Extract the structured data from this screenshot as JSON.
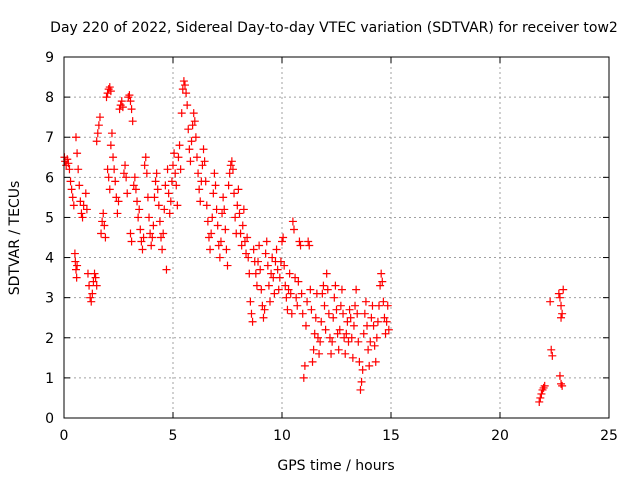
{
  "chart_data": {
    "type": "scatter",
    "title": "Day 220 of 2022, Sidereal Day-to-day VTEC variation (SDTVAR) for receiver tow2",
    "xlabel": "GPS time / hours",
    "ylabel": "SDTVAR / TECUs",
    "xlim": [
      0,
      25
    ],
    "ylim": [
      0,
      9
    ],
    "xticks": [
      "0",
      "5",
      "10",
      "15",
      "20",
      "25"
    ],
    "yticks": [
      "0",
      "1",
      "2",
      "3",
      "4",
      "5",
      "6",
      "7",
      "8",
      "9"
    ],
    "grid": true,
    "marker": "plus",
    "color": "#ff0000",
    "series": [
      {
        "name": "SDTVAR",
        "points": [
          [
            0.02,
            6.5
          ],
          [
            0.05,
            6.4
          ],
          [
            0.1,
            6.3
          ],
          [
            0.15,
            6.45
          ],
          [
            0.2,
            6.35
          ],
          [
            0.25,
            6.2
          ],
          [
            0.3,
            5.9
          ],
          [
            0.35,
            5.7
          ],
          [
            0.4,
            5.5
          ],
          [
            0.45,
            5.3
          ],
          [
            0.5,
            4.1
          ],
          [
            0.52,
            3.9
          ],
          [
            0.55,
            3.7
          ],
          [
            0.58,
            3.5
          ],
          [
            0.6,
            3.8
          ],
          [
            0.55,
            7.0
          ],
          [
            0.6,
            6.6
          ],
          [
            0.65,
            6.2
          ],
          [
            0.7,
            5.8
          ],
          [
            0.75,
            5.4
          ],
          [
            0.8,
            5.1
          ],
          [
            0.85,
            5.0
          ],
          [
            0.9,
            5.3
          ],
          [
            1.0,
            5.6
          ],
          [
            1.05,
            5.2
          ],
          [
            1.1,
            3.6
          ],
          [
            1.15,
            3.3
          ],
          [
            1.2,
            3.0
          ],
          [
            1.25,
            2.9
          ],
          [
            1.3,
            3.1
          ],
          [
            1.35,
            3.4
          ],
          [
            1.4,
            3.6
          ],
          [
            1.45,
            3.5
          ],
          [
            1.5,
            3.3
          ],
          [
            1.5,
            6.9
          ],
          [
            1.55,
            7.1
          ],
          [
            1.6,
            7.3
          ],
          [
            1.65,
            7.5
          ],
          [
            1.7,
            4.6
          ],
          [
            1.75,
            4.9
          ],
          [
            1.8,
            5.1
          ],
          [
            1.85,
            4.8
          ],
          [
            1.9,
            4.5
          ],
          [
            1.95,
            8.0
          ],
          [
            2.0,
            8.1
          ],
          [
            2.05,
            8.2
          ],
          [
            2.1,
            8.25
          ],
          [
            2.15,
            8.15
          ],
          [
            2.0,
            6.2
          ],
          [
            2.05,
            6.0
          ],
          [
            2.1,
            5.7
          ],
          [
            2.15,
            6.8
          ],
          [
            2.2,
            7.1
          ],
          [
            2.25,
            6.5
          ],
          [
            2.3,
            6.2
          ],
          [
            2.35,
            5.9
          ],
          [
            2.4,
            5.5
          ],
          [
            2.45,
            5.1
          ],
          [
            2.5,
            5.4
          ],
          [
            2.55,
            7.7
          ],
          [
            2.6,
            7.8
          ],
          [
            2.65,
            7.9
          ],
          [
            2.7,
            7.75
          ],
          [
            2.75,
            6.1
          ],
          [
            2.8,
            6.3
          ],
          [
            2.85,
            6.0
          ],
          [
            2.9,
            5.6
          ],
          [
            2.95,
            8.0
          ],
          [
            3.0,
            8.05
          ],
          [
            3.05,
            7.9
          ],
          [
            3.1,
            7.7
          ],
          [
            3.15,
            7.4
          ],
          [
            3.05,
            4.6
          ],
          [
            3.1,
            4.4
          ],
          [
            3.2,
            5.8
          ],
          [
            3.25,
            6.0
          ],
          [
            3.3,
            5.7
          ],
          [
            3.35,
            5.4
          ],
          [
            3.4,
            5.0
          ],
          [
            3.45,
            5.2
          ],
          [
            3.5,
            4.7
          ],
          [
            3.55,
            4.4
          ],
          [
            3.6,
            4.2
          ],
          [
            3.65,
            4.5
          ],
          [
            3.7,
            6.3
          ],
          [
            3.75,
            6.5
          ],
          [
            3.8,
            6.1
          ],
          [
            3.85,
            5.5
          ],
          [
            3.9,
            5.0
          ],
          [
            3.95,
            4.6
          ],
          [
            4.0,
            4.3
          ],
          [
            4.05,
            4.5
          ],
          [
            4.1,
            4.8
          ],
          [
            4.15,
            5.5
          ],
          [
            4.2,
            5.9
          ],
          [
            4.25,
            6.1
          ],
          [
            4.3,
            5.7
          ],
          [
            4.35,
            5.3
          ],
          [
            4.4,
            4.9
          ],
          [
            4.45,
            4.5
          ],
          [
            4.5,
            4.2
          ],
          [
            4.55,
            4.6
          ],
          [
            4.6,
            5.2
          ],
          [
            4.65,
            5.8
          ],
          [
            4.7,
            3.7
          ],
          [
            4.75,
            6.2
          ],
          [
            4.8,
            5.6
          ],
          [
            4.85,
            5.1
          ],
          [
            4.9,
            5.4
          ],
          [
            4.95,
            5.9
          ],
          [
            5.0,
            6.3
          ],
          [
            5.05,
            6.6
          ],
          [
            5.1,
            6.1
          ],
          [
            5.15,
            5.8
          ],
          [
            5.2,
            5.3
          ],
          [
            5.25,
            6.5
          ],
          [
            5.3,
            6.8
          ],
          [
            5.35,
            6.2
          ],
          [
            5.4,
            7.6
          ],
          [
            5.45,
            8.2
          ],
          [
            5.5,
            8.4
          ],
          [
            5.55,
            8.3
          ],
          [
            5.6,
            8.1
          ],
          [
            5.65,
            7.8
          ],
          [
            5.7,
            7.2
          ],
          [
            5.75,
            6.7
          ],
          [
            5.8,
            6.4
          ],
          [
            5.85,
            6.9
          ],
          [
            5.9,
            7.3
          ],
          [
            5.95,
            7.6
          ],
          [
            6.0,
            7.4
          ],
          [
            6.05,
            7.0
          ],
          [
            6.1,
            6.5
          ],
          [
            6.15,
            6.1
          ],
          [
            6.2,
            5.7
          ],
          [
            6.25,
            5.4
          ],
          [
            6.3,
            5.9
          ],
          [
            6.35,
            6.3
          ],
          [
            6.4,
            6.7
          ],
          [
            6.45,
            6.4
          ],
          [
            6.5,
            5.9
          ],
          [
            6.55,
            5.3
          ],
          [
            6.6,
            4.9
          ],
          [
            6.65,
            4.5
          ],
          [
            6.7,
            4.2
          ],
          [
            6.75,
            4.6
          ],
          [
            6.8,
            5.0
          ],
          [
            6.85,
            5.6
          ],
          [
            6.9,
            6.1
          ],
          [
            6.95,
            5.8
          ],
          [
            7.0,
            5.2
          ],
          [
            7.05,
            4.8
          ],
          [
            7.1,
            4.3
          ],
          [
            7.15,
            4.0
          ],
          [
            7.2,
            4.4
          ],
          [
            7.25,
            5.1
          ],
          [
            7.3,
            5.5
          ],
          [
            7.35,
            5.2
          ],
          [
            7.4,
            4.7
          ],
          [
            7.45,
            4.2
          ],
          [
            7.5,
            3.8
          ],
          [
            7.55,
            5.8
          ],
          [
            7.6,
            6.1
          ],
          [
            7.65,
            6.3
          ],
          [
            7.7,
            6.4
          ],
          [
            7.75,
            6.2
          ],
          [
            7.8,
            5.6
          ],
          [
            7.85,
            5.0
          ],
          [
            7.9,
            4.6
          ],
          [
            7.95,
            5.3
          ],
          [
            8.0,
            5.7
          ],
          [
            8.05,
            5.1
          ],
          [
            8.1,
            4.6
          ],
          [
            8.15,
            4.3
          ],
          [
            8.2,
            4.8
          ],
          [
            8.25,
            5.2
          ],
          [
            8.3,
            4.4
          ],
          [
            8.35,
            4.1
          ],
          [
            8.4,
            4.5
          ],
          [
            8.45,
            4.0
          ],
          [
            8.5,
            3.6
          ],
          [
            8.55,
            2.9
          ],
          [
            8.6,
            2.6
          ],
          [
            8.65,
            2.4
          ],
          [
            8.7,
            4.2
          ],
          [
            8.75,
            3.9
          ],
          [
            8.8,
            3.6
          ],
          [
            8.85,
            3.3
          ],
          [
            8.9,
            3.9
          ],
          [
            8.95,
            4.3
          ],
          [
            9.0,
            3.7
          ],
          [
            9.05,
            3.2
          ],
          [
            9.1,
            2.8
          ],
          [
            9.15,
            2.5
          ],
          [
            9.2,
            2.7
          ],
          [
            9.25,
            4.1
          ],
          [
            9.3,
            4.4
          ],
          [
            9.35,
            3.8
          ],
          [
            9.4,
            3.3
          ],
          [
            9.45,
            2.9
          ],
          [
            9.5,
            3.6
          ],
          [
            9.55,
            4.0
          ],
          [
            9.6,
            3.5
          ],
          [
            9.65,
            3.1
          ],
          [
            9.7,
            3.9
          ],
          [
            9.75,
            4.2
          ],
          [
            9.8,
            3.7
          ],
          [
            9.85,
            3.2
          ],
          [
            9.9,
            3.5
          ],
          [
            9.95,
            3.9
          ],
          [
            10.0,
            4.4
          ],
          [
            10.05,
            4.5
          ],
          [
            10.1,
            3.8
          ],
          [
            10.15,
            3.3
          ],
          [
            10.2,
            3.0
          ],
          [
            10.25,
            2.7
          ],
          [
            10.3,
            3.2
          ],
          [
            10.35,
            3.6
          ],
          [
            10.4,
            3.1
          ],
          [
            10.45,
            2.6
          ],
          [
            10.5,
            4.9
          ],
          [
            10.55,
            4.7
          ],
          [
            10.6,
            3.5
          ],
          [
            10.65,
            3.0
          ],
          [
            10.7,
            2.8
          ],
          [
            10.75,
            3.4
          ],
          [
            10.8,
            4.4
          ],
          [
            10.85,
            4.3
          ],
          [
            10.9,
            3.1
          ],
          [
            10.95,
            2.6
          ],
          [
            11.0,
            1.0
          ],
          [
            11.05,
            1.3
          ],
          [
            11.1,
            2.3
          ],
          [
            11.15,
            2.9
          ],
          [
            11.2,
            4.4
          ],
          [
            11.25,
            4.3
          ],
          [
            11.3,
            3.2
          ],
          [
            11.35,
            2.7
          ],
          [
            11.4,
            1.4
          ],
          [
            11.45,
            1.7
          ],
          [
            11.5,
            2.1
          ],
          [
            11.55,
            2.5
          ],
          [
            11.6,
            3.1
          ],
          [
            11.65,
            2.0
          ],
          [
            11.7,
            1.6
          ],
          [
            11.75,
            1.9
          ],
          [
            11.8,
            2.4
          ],
          [
            11.85,
            3.1
          ],
          [
            11.9,
            3.3
          ],
          [
            11.95,
            2.8
          ],
          [
            12.0,
            2.2
          ],
          [
            12.05,
            3.6
          ],
          [
            12.1,
            3.2
          ],
          [
            12.15,
            2.6
          ],
          [
            12.2,
            2.0
          ],
          [
            12.25,
            1.6
          ],
          [
            12.3,
            1.9
          ],
          [
            12.35,
            2.5
          ],
          [
            12.4,
            3.0
          ],
          [
            12.45,
            3.3
          ],
          [
            12.5,
            2.7
          ],
          [
            12.55,
            2.1
          ],
          [
            12.6,
            1.7
          ],
          [
            12.65,
            2.2
          ],
          [
            12.7,
            2.8
          ],
          [
            12.75,
            3.2
          ],
          [
            12.8,
            2.6
          ],
          [
            12.85,
            2.0
          ],
          [
            12.9,
            1.6
          ],
          [
            12.95,
            2.1
          ],
          [
            13.0,
            2.4
          ],
          [
            13.05,
            1.9
          ],
          [
            13.1,
            2.7
          ],
          [
            13.15,
            2.5
          ],
          [
            13.2,
            2.0
          ],
          [
            13.25,
            1.5
          ],
          [
            13.3,
            2.3
          ],
          [
            13.35,
            2.8
          ],
          [
            13.4,
            3.2
          ],
          [
            13.45,
            2.6
          ],
          [
            13.5,
            1.9
          ],
          [
            13.55,
            1.4
          ],
          [
            13.6,
            0.7
          ],
          [
            13.65,
            0.9
          ],
          [
            13.7,
            1.2
          ],
          [
            13.75,
            2.1
          ],
          [
            13.8,
            2.6
          ],
          [
            13.85,
            2.9
          ],
          [
            13.9,
            2.3
          ],
          [
            13.95,
            1.7
          ],
          [
            14.0,
            1.3
          ],
          [
            14.05,
            1.9
          ],
          [
            14.1,
            2.5
          ],
          [
            14.15,
            2.8
          ],
          [
            14.2,
            2.3
          ],
          [
            14.25,
            1.8
          ],
          [
            14.3,
            1.4
          ],
          [
            14.35,
            2.0
          ],
          [
            14.4,
            2.4
          ],
          [
            14.45,
            2.8
          ],
          [
            14.5,
            3.3
          ],
          [
            14.55,
            3.6
          ],
          [
            14.6,
            3.4
          ],
          [
            14.65,
            2.9
          ],
          [
            14.7,
            2.5
          ],
          [
            14.75,
            2.1
          ],
          [
            14.8,
            2.4
          ],
          [
            14.85,
            2.8
          ],
          [
            14.9,
            2.2
          ],
          [
            21.8,
            0.4
          ],
          [
            21.85,
            0.5
          ],
          [
            21.9,
            0.6
          ],
          [
            21.95,
            0.7
          ],
          [
            22.0,
            0.75
          ],
          [
            22.05,
            0.8
          ],
          [
            22.3,
            2.9
          ],
          [
            22.35,
            1.7
          ],
          [
            22.4,
            1.55
          ],
          [
            22.75,
            1.05
          ],
          [
            22.8,
            0.85
          ],
          [
            22.85,
            0.8
          ],
          [
            22.7,
            3.1
          ],
          [
            22.75,
            3.0
          ],
          [
            22.8,
            2.8
          ],
          [
            22.85,
            2.6
          ],
          [
            22.9,
            3.2
          ],
          [
            22.8,
            2.5
          ]
        ]
      }
    ]
  }
}
